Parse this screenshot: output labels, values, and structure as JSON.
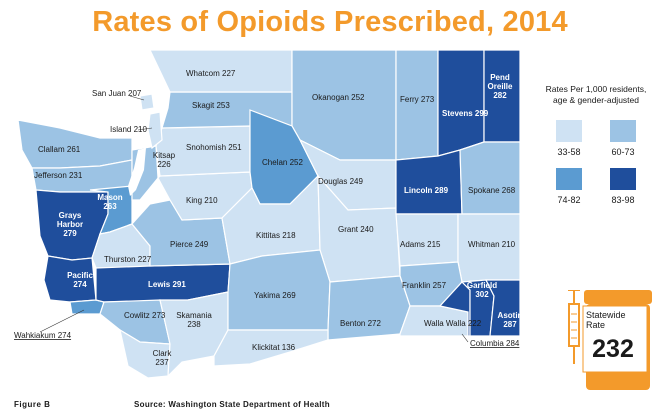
{
  "title": "Rates of Opioids Prescribed, 2014",
  "legend": {
    "title": "Rates Per 1,000 residents, age & gender-adjusted",
    "items": [
      {
        "label": "33-58",
        "color": "#cfe2f3"
      },
      {
        "label": "60-73",
        "color": "#9cc3e4"
      },
      {
        "label": "74-82",
        "color": "#5b9bd1"
      },
      {
        "label": "83-98",
        "color": "#1f4e9c"
      }
    ]
  },
  "counties": [
    {
      "name": "Whatcom",
      "rate": 227,
      "label": "Whatcom 227"
    },
    {
      "name": "San Juan",
      "rate": 207,
      "label": "San Juan 207"
    },
    {
      "name": "Skagit",
      "rate": 253,
      "label": "Skagit 253"
    },
    {
      "name": "Island",
      "rate": 210,
      "label": "Island 210"
    },
    {
      "name": "Okanogan",
      "rate": 252,
      "label": "Okanogan 252"
    },
    {
      "name": "Ferry",
      "rate": 273,
      "label": "Ferry 273"
    },
    {
      "name": "Stevens",
      "rate": 299,
      "label": "Stevens 299"
    },
    {
      "name": "Pend Oreille",
      "rate": 282,
      "label": "Pend Oreille 282"
    },
    {
      "name": "Clallam",
      "rate": 261,
      "label": "Clallam 261"
    },
    {
      "name": "Snohomish",
      "rate": 251,
      "label": "Snohomish 251"
    },
    {
      "name": "Kitsap",
      "rate": 226,
      "label": "Kitsap 226"
    },
    {
      "name": "Chelan",
      "rate": 252,
      "label": "Chelan 252"
    },
    {
      "name": "Jefferson",
      "rate": 231,
      "label": "Jefferson 231"
    },
    {
      "name": "Douglas",
      "rate": 249,
      "label": "Douglas 249"
    },
    {
      "name": "Lincoln",
      "rate": 289,
      "label": "Lincoln 289"
    },
    {
      "name": "Spokane",
      "rate": 268,
      "label": "Spokane 268"
    },
    {
      "name": "Mason",
      "rate": 263,
      "label": "Mason 263"
    },
    {
      "name": "King",
      "rate": 210,
      "label": "King 210"
    },
    {
      "name": "Grays Harbor",
      "rate": 279,
      "label": "Grays Harbor 279"
    },
    {
      "name": "Grant",
      "rate": 240,
      "label": "Grant 240"
    },
    {
      "name": "Kittitas",
      "rate": 218,
      "label": "Kittitas 218"
    },
    {
      "name": "Pierce",
      "rate": 249,
      "label": "Pierce 249"
    },
    {
      "name": "Adams",
      "rate": 215,
      "label": "Adams 215"
    },
    {
      "name": "Whitman",
      "rate": 210,
      "label": "Whitman 210"
    },
    {
      "name": "Thurston",
      "rate": 227,
      "label": "Thurston 227"
    },
    {
      "name": "Pacific",
      "rate": 274,
      "label": "Pacific 274"
    },
    {
      "name": "Lewis",
      "rate": 291,
      "label": "Lewis 291"
    },
    {
      "name": "Franklin",
      "rate": 257,
      "label": "Franklin 257"
    },
    {
      "name": "Garfield",
      "rate": 302,
      "label": "Garfield 302"
    },
    {
      "name": "Yakima",
      "rate": 269,
      "label": "Yakima 269"
    },
    {
      "name": "Asotin",
      "rate": 287,
      "label": "Asotin 287"
    },
    {
      "name": "Cowlitz",
      "rate": 273,
      "label": "Cowlitz 273"
    },
    {
      "name": "Skamania",
      "rate": 238,
      "label": "Skamania 238"
    },
    {
      "name": "Benton",
      "rate": 272,
      "label": "Benton 272"
    },
    {
      "name": "Walla Walla",
      "rate": 222,
      "label": "Walla Walla 222"
    },
    {
      "name": "Wahkiakum",
      "rate": 274,
      "label": "Wahkiakum 274"
    },
    {
      "name": "Clark",
      "rate": 237,
      "label": "Clark 237"
    },
    {
      "name": "Klickitat",
      "rate": 136,
      "label": "Klickitat 136"
    },
    {
      "name": "Columbia",
      "rate": 284,
      "label": "Columbia 284"
    }
  ],
  "statewide": {
    "label": "Statewide Rate",
    "rate": "232"
  },
  "footer": {
    "figure": "Figure B",
    "source": "Source: Washington State Department of Health"
  }
}
